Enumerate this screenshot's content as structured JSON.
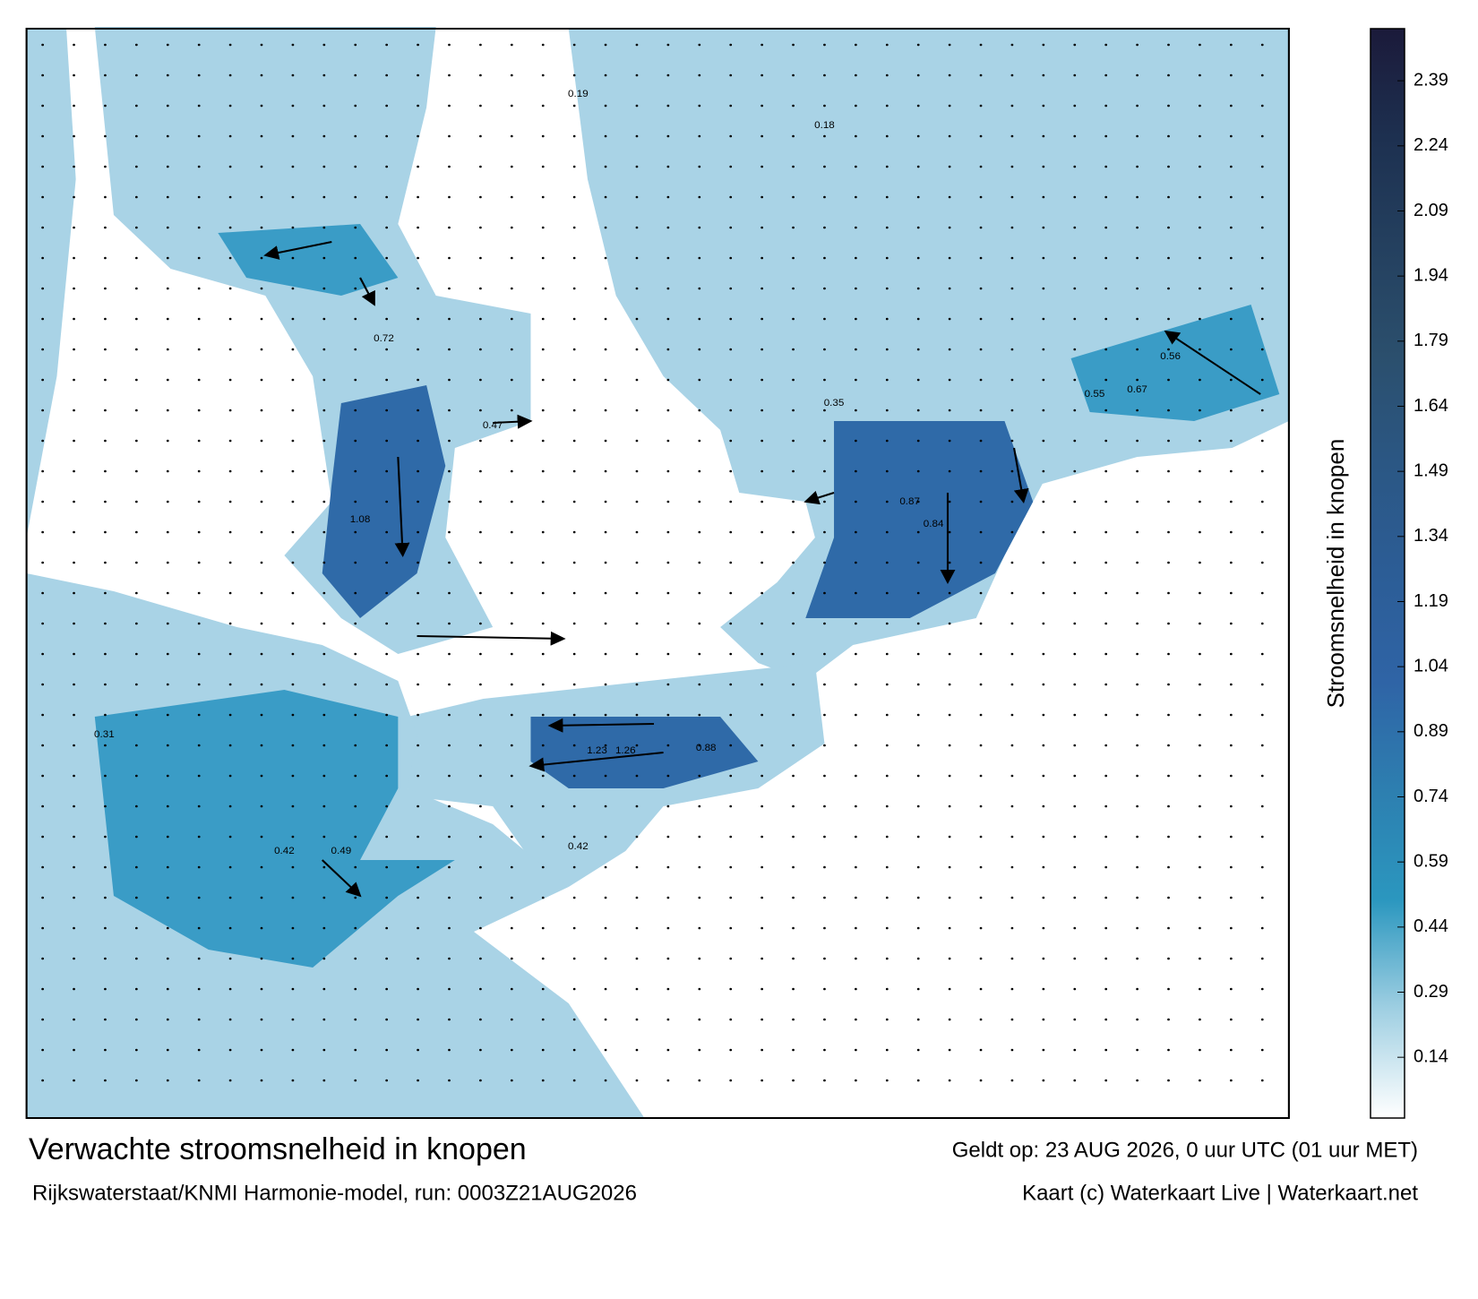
{
  "title": "Verwachte stroomsnelheid in knopen",
  "subtitle": "Rijkswaterstaat/KNMI Harmonie-model, run: 0003Z21AUG2026",
  "valid": "Geldt op: 23 AUG 2026, 0 uur UTC (01 uur MET)",
  "credit": "Kaart (c) Waterkaart Live | Waterkaart.net",
  "colorbar": {
    "label": "Stroomsnelheid in knopen",
    "lim": [
      0,
      2.51
    ],
    "ticks": [
      0.14,
      0.29,
      0.44,
      0.59,
      0.74,
      0.89,
      1.04,
      1.19,
      1.34,
      1.49,
      1.64,
      1.79,
      1.94,
      2.09,
      2.24,
      2.39
    ],
    "colors": [
      "#ffffff",
      "#9fcfe2",
      "#2b97bf",
      "#2d7fb0",
      "#2f64a6",
      "#2c5d96",
      "#2b5784",
      "#2b4f6d",
      "#24405f",
      "#1d3050",
      "#1b1a3a"
    ]
  },
  "speed_labels": [
    "0.87",
    "0.84",
    "1.08",
    "1.26",
    "1.23",
    "0.88",
    "0.47",
    "0.55",
    "0.67",
    "0.42",
    "0.72",
    "0.42",
    "0.56",
    "0.35",
    "0.49",
    "0.19",
    "0.18",
    "0.31"
  ]
}
